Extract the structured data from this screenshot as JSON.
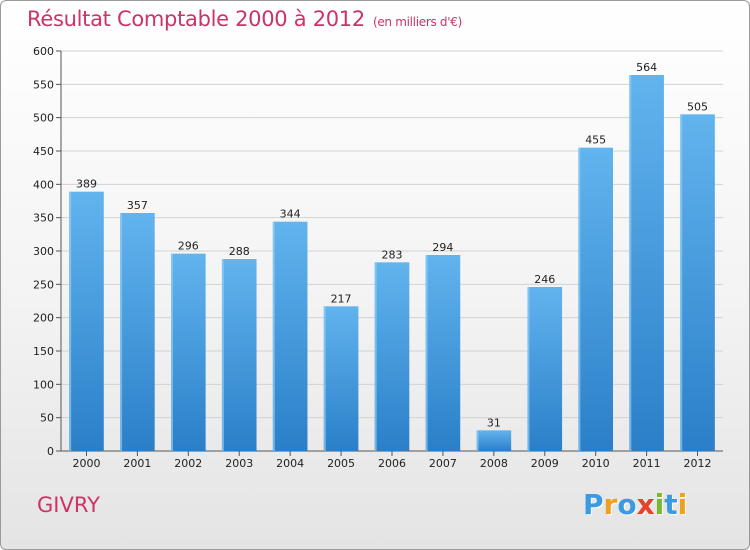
{
  "header": {
    "title": "Résultat Comptable 2000 à 2012",
    "subtitle": "(en milliers d'€)"
  },
  "footer": {
    "commune": "GIVRY",
    "logo_letters": [
      {
        "char": "P",
        "color": "#3b9be0"
      },
      {
        "char": "r",
        "color": "#f0a020"
      },
      {
        "char": "o",
        "color": "#3b9be0"
      },
      {
        "char": "x",
        "color": "#e8402a"
      },
      {
        "char": "i",
        "color": "#78b832"
      },
      {
        "char": "t",
        "color": "#3b9be0"
      },
      {
        "char": "i",
        "color": "#f0a020"
      }
    ]
  },
  "colors": {
    "bar_light": "#62b4ee",
    "bar_dark": "#2a7fc8",
    "title": "#cc3366"
  },
  "chart_data": {
    "type": "bar",
    "title": "Résultat Comptable 2000 à 2012",
    "xlabel": "",
    "ylabel": "",
    "ylim": [
      0,
      600
    ],
    "yticks": [
      0,
      50,
      100,
      150,
      200,
      250,
      300,
      350,
      400,
      450,
      500,
      550,
      600
    ],
    "grid": true,
    "categories": [
      "2000",
      "2001",
      "2002",
      "2003",
      "2004",
      "2005",
      "2006",
      "2007",
      "2008",
      "2009",
      "2010",
      "2011",
      "2012"
    ],
    "values": [
      389,
      357,
      296,
      288,
      344,
      217,
      283,
      294,
      31,
      246,
      455,
      564,
      505
    ]
  }
}
